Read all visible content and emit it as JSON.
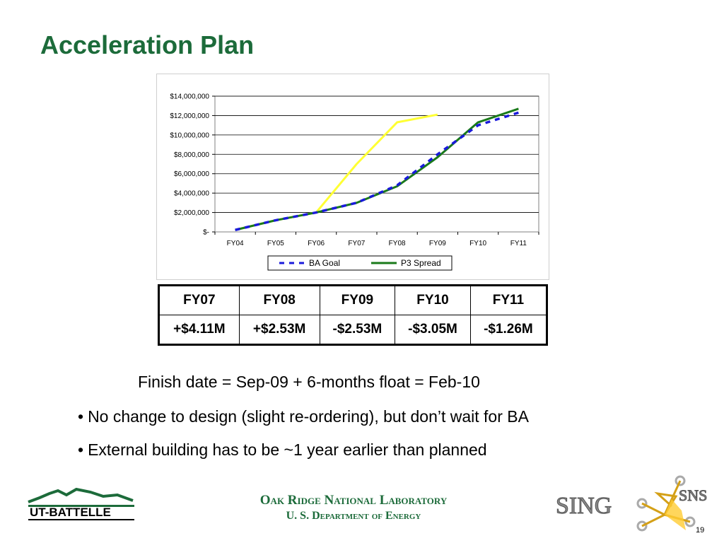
{
  "title": "Acceleration Plan",
  "chart_data": {
    "type": "line",
    "categories": [
      "FY04",
      "FY05",
      "FY06",
      "FY07",
      "FY08",
      "FY09",
      "FY10",
      "FY11"
    ],
    "y_ticks": [
      "$-",
      "$2,000,000",
      "$4,000,000",
      "$6,000,000",
      "$8,000,000",
      "$10,000,000",
      "$12,000,000",
      "$14,000,000"
    ],
    "ylim": [
      0,
      14000000
    ],
    "grid": true,
    "series": [
      {
        "name": "BA Goal",
        "color": "#1a1adb",
        "dash": true,
        "values": [
          200000,
          1200000,
          2000000,
          3000000,
          4800000,
          8000000,
          11000000,
          12300000
        ]
      },
      {
        "name": "P3 Spread",
        "color": "#1a7a1a",
        "dash": false,
        "values": [
          200000,
          1200000,
          2000000,
          3000000,
          4700000,
          7700000,
          11300000,
          12700000
        ]
      },
      {
        "name": "",
        "color": "#ffff33",
        "dash": false,
        "values": [
          200000,
          1200000,
          2000000,
          7000000,
          11300000,
          12100000,
          null,
          null
        ]
      }
    ],
    "legend_position": "bottom"
  },
  "table": {
    "headers": [
      "FY07",
      "FY08",
      "FY09",
      "FY10",
      "FY11"
    ],
    "values": [
      "+$4.11M",
      "+$2.53M",
      "-$2.53M",
      "-$3.05M",
      "-$1.26M"
    ]
  },
  "finish_text": "Finish date = Sep-09 + 6-months float = Feb-10",
  "bullets": [
    "No change to design (slight re-ordering), but don’t wait for BA",
    "External building has to be ~1 year earlier than planned"
  ],
  "footer": {
    "line1": "Oak Ridge National Laboratory",
    "line2": "U. S. Department of Energy",
    "page_number": "19",
    "ut_logo_text": "UT-BATTELLE",
    "sns_logo_text_left": "SING",
    "sns_logo_text_right": "SNS"
  }
}
